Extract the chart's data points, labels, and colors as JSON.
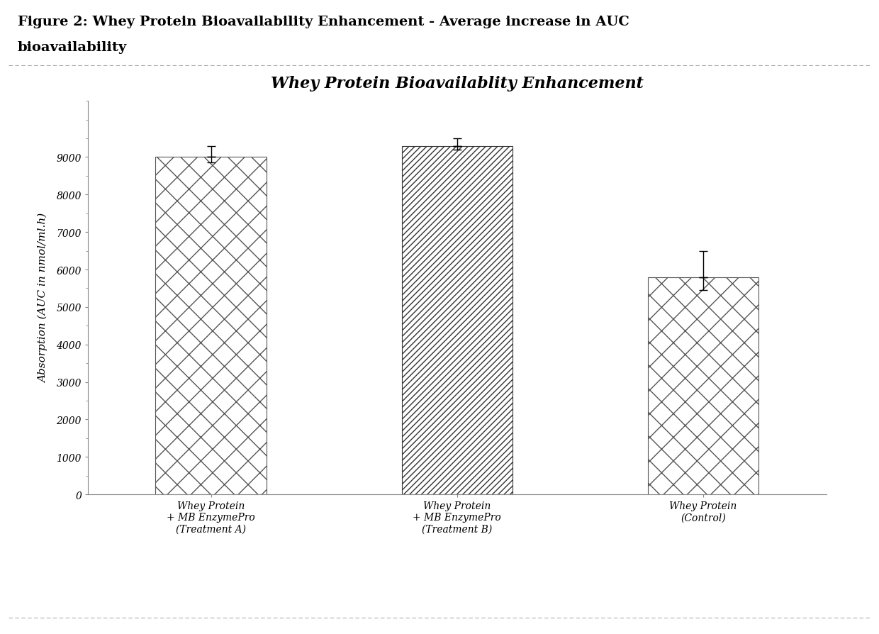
{
  "title": "Whey Protein Bioavailablity Enhancement",
  "figure_title_line1": "Figure 2: Whey Protein Bioavailability Enhancement - Average increase in AUC",
  "figure_title_line2": "bioavailability",
  "ylabel": "Absorption (AUC in nmol/ml.h)",
  "categories": [
    "Whey Protein\n+ MB EnzymePro\n(Treatment A)",
    "Whey Protein\n+ MB EnzymePro\n(Treatment B)",
    "Whey Protein\n(Control)"
  ],
  "values": [
    9000,
    9300,
    5800
  ],
  "errors": [
    300,
    200,
    700
  ],
  "ylim": [
    0,
    10500
  ],
  "yticks": [
    0,
    1000,
    2000,
    3000,
    4000,
    5000,
    6000,
    7000,
    8000,
    9000
  ],
  "bar_colors": [
    "white",
    "white",
    "white"
  ],
  "bar_hatch": [
    "x",
    "////",
    "x"
  ],
  "bar_edgecolors": [
    "#555555",
    "#333333",
    "#555555"
  ],
  "background_color": "#ffffff",
  "outer_bg": "#ffffff",
  "title_fontsize": 16,
  "axis_label_fontsize": 11,
  "tick_fontsize": 10,
  "figure_title_fontsize": 14,
  "bar_width": 0.45,
  "sep_color": "#aaaaaa",
  "x_positions": [
    0,
    1,
    2
  ]
}
